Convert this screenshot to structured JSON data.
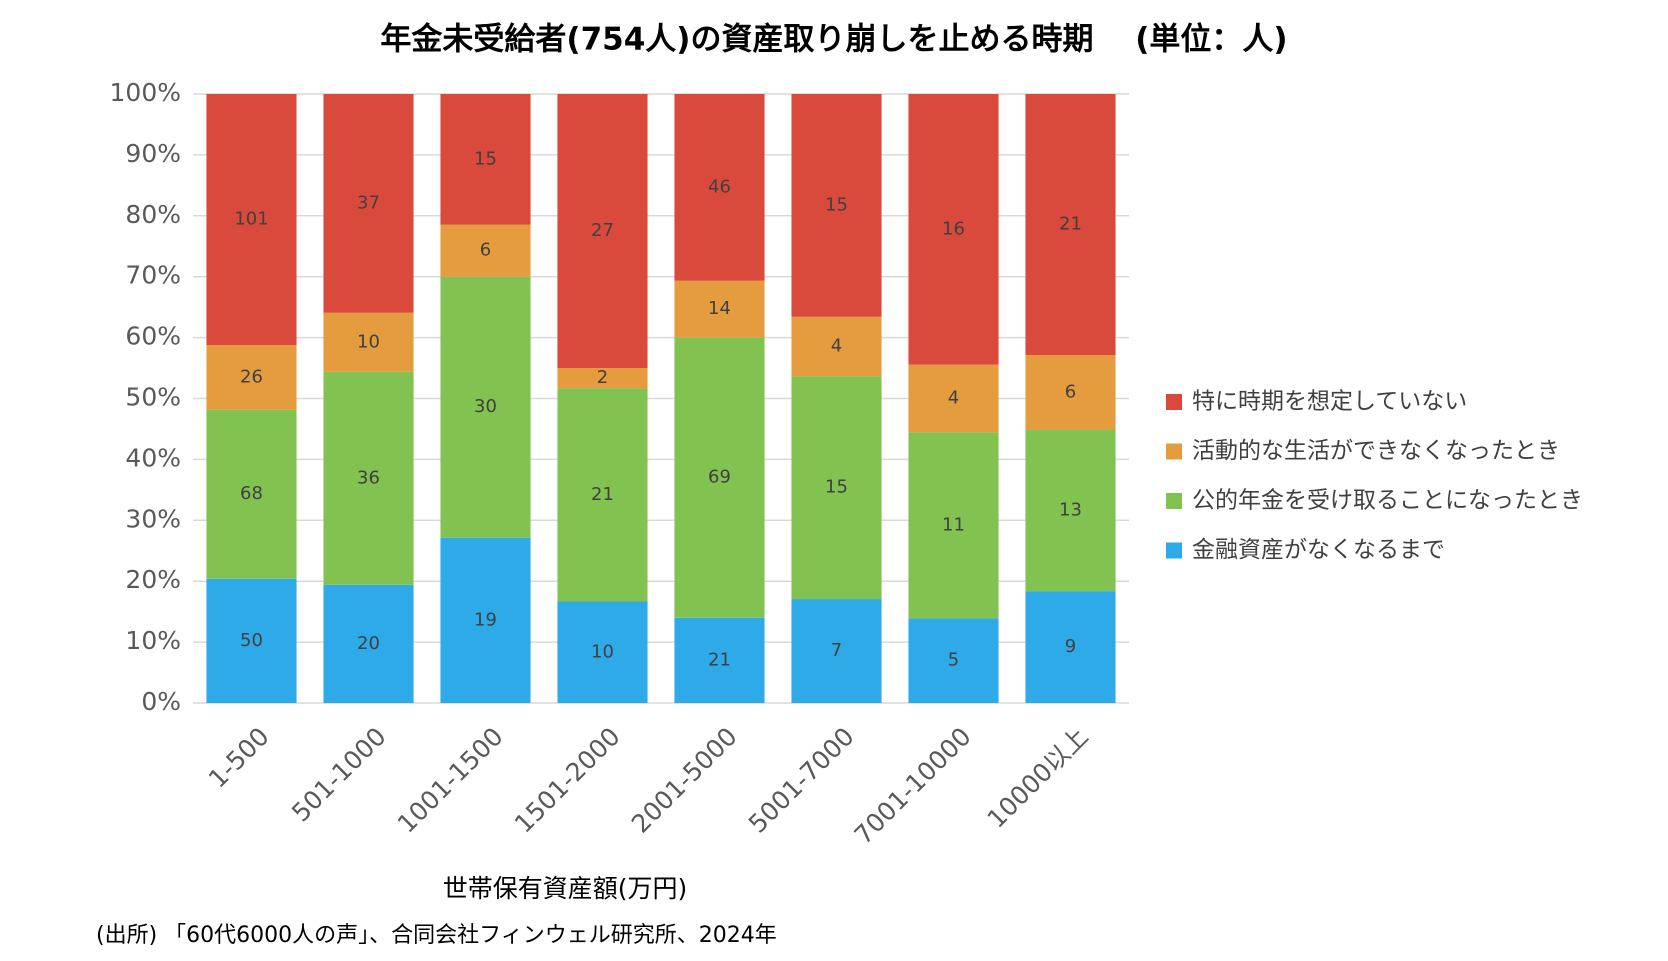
{
  "chart_data": {
    "type": "bar",
    "stacking": "percent",
    "title": "年金未受給者(754人)の資産取り崩しを止める時期　 (単位：人)",
    "x_label": "世帯保有資産額(万円)",
    "source": "(出所) 「60代6000人の声」、合同会社フィンウェル研究所、2024年",
    "categories": [
      "1-500",
      "501-1000",
      "1001-1500",
      "1501-2000",
      "2001-5000",
      "5001-7000",
      "7001-10000",
      "10000以上"
    ],
    "series": [
      {
        "name": "金融資産がなくなるまで",
        "color": "#2eaae8",
        "values": [
          50,
          20,
          19,
          10,
          21,
          7,
          5,
          9
        ]
      },
      {
        "name": "公的年金を受け取ることになったとき",
        "color": "#82c250",
        "values": [
          68,
          36,
          30,
          21,
          69,
          15,
          11,
          13
        ]
      },
      {
        "name": "活動的な生活ができなくなったとき",
        "color": "#e49c3f",
        "values": [
          26,
          10,
          6,
          2,
          14,
          4,
          4,
          6
        ]
      },
      {
        "name": "特に時期を想定していない",
        "color": "#d94a3c",
        "values": [
          101,
          37,
          15,
          27,
          46,
          15,
          16,
          21
        ]
      }
    ],
    "ylim": [
      0,
      100
    ],
    "yticks": [
      {
        "value": 0,
        "label": "0%"
      },
      {
        "value": 10,
        "label": "10%"
      },
      {
        "value": 20,
        "label": "20%"
      },
      {
        "value": 30,
        "label": "30%"
      },
      {
        "value": 40,
        "label": "40%"
      },
      {
        "value": 50,
        "label": "50%"
      },
      {
        "value": 60,
        "label": "60%"
      },
      {
        "value": 70,
        "label": "70%"
      },
      {
        "value": 80,
        "label": "80%"
      },
      {
        "value": 90,
        "label": "90%"
      },
      {
        "value": 100,
        "label": "100%"
      }
    ],
    "grid": true,
    "legend": "right"
  }
}
